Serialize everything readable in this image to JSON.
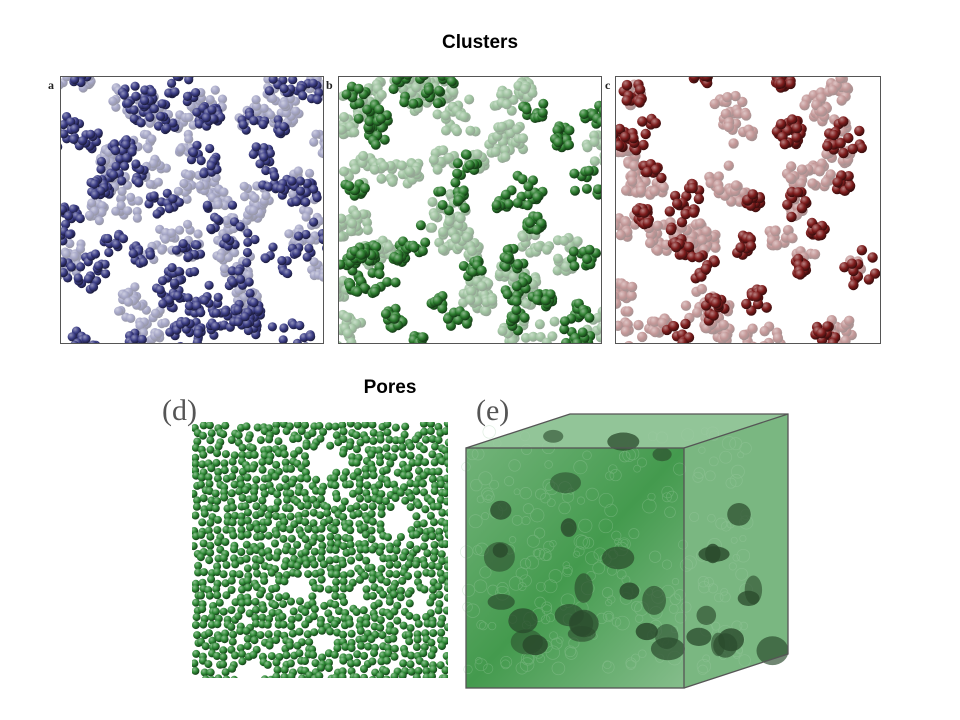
{
  "headings": {
    "clusters": "Clusters",
    "pores": "Pores"
  },
  "panel_labels": {
    "a": "a",
    "b": "b",
    "c": "c",
    "d": "(d)",
    "e": "(e)"
  },
  "colors": {
    "panel_a": "#3b3d86",
    "panel_b": "#2c7d2e",
    "panel_c": "#7e1c1c",
    "panel_d": "#2e8a35",
    "panel_e": "#2f8f3a",
    "frame": "#555555"
  }
}
